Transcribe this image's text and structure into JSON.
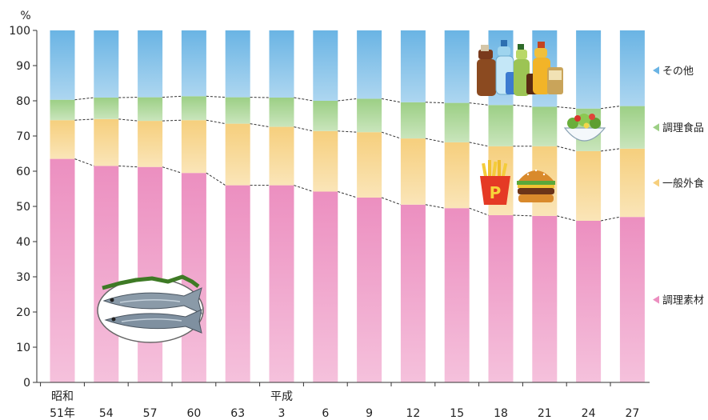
{
  "chart_data": {
    "type": "bar",
    "stacked": true,
    "percent": true,
    "unit_label": "%",
    "ylim": [
      0,
      100
    ],
    "yticks": [
      0,
      10,
      20,
      30,
      40,
      50,
      60,
      70,
      80,
      90,
      100
    ],
    "era_labels": [
      {
        "category_index": 0,
        "label": "昭和"
      },
      {
        "category_index": 5,
        "label": "平成"
      }
    ],
    "categories": [
      "51年",
      "54",
      "57",
      "60",
      "63",
      "3",
      "6",
      "9",
      "12",
      "15",
      "18",
      "21",
      "24",
      "27"
    ],
    "series": [
      {
        "name": "調理素材",
        "color": "#ec8fc0",
        "values": [
          63.5,
          61.5,
          61.2,
          59.5,
          56.0,
          56.0,
          54.2,
          52.5,
          50.5,
          49.5,
          47.5,
          47.3,
          45.9,
          47.0
        ]
      },
      {
        "name": "一般外食",
        "color": "#f6cf7d",
        "values": [
          11.0,
          13.3,
          13.1,
          15.0,
          17.5,
          16.6,
          17.2,
          18.6,
          18.8,
          18.7,
          19.6,
          19.8,
          19.8,
          19.4
        ]
      },
      {
        "name": "調理食品",
        "color": "#9ccf85",
        "values": [
          5.8,
          6.1,
          6.7,
          6.8,
          7.5,
          8.3,
          8.6,
          9.5,
          10.3,
          11.2,
          11.7,
          11.2,
          12.1,
          12.1
        ]
      },
      {
        "name": "その他",
        "color": "#6ab4e4",
        "values": [
          19.7,
          19.1,
          19.0,
          18.7,
          19.0,
          19.1,
          20.0,
          19.4,
          20.4,
          20.6,
          21.2,
          21.7,
          22.2,
          21.5
        ]
      }
    ],
    "legend_position": "right",
    "connector_lines": "dashed",
    "illustrations": [
      "fish-plate-icon",
      "bottles-icon",
      "salad-bowl-icon",
      "fries-icon",
      "burger-icon"
    ]
  }
}
